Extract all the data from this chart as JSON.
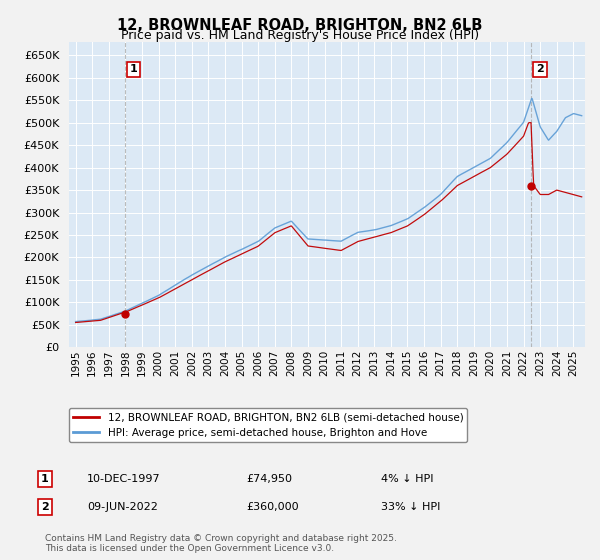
{
  "title1": "12, BROWNLEAF ROAD, BRIGHTON, BN2 6LB",
  "title2": "Price paid vs. HM Land Registry's House Price Index (HPI)",
  "legend_label1": "12, BROWNLEAF ROAD, BRIGHTON, BN2 6LB (semi-detached house)",
  "legend_label2": "HPI: Average price, semi-detached house, Brighton and Hove",
  "annotation1_label": "1",
  "annotation1_date": "10-DEC-1997",
  "annotation1_price": "£74,950",
  "annotation1_hpi": "4% ↓ HPI",
  "annotation2_label": "2",
  "annotation2_date": "09-JUN-2022",
  "annotation2_price": "£360,000",
  "annotation2_hpi": "33% ↓ HPI",
  "footnote": "Contains HM Land Registry data © Crown copyright and database right 2025.\nThis data is licensed under the Open Government Licence v3.0.",
  "hpi_color": "#5b9bd5",
  "price_color": "#c00000",
  "dashed_color": "#aaaaaa",
  "bg_color": "#f2f2f2",
  "plot_bg": "#dce9f5",
  "ylim_min": 0,
  "ylim_max": 680000,
  "sale1_year": 1997.95,
  "sale1_price": 74950,
  "sale2_year": 2022.45,
  "sale2_price": 360000
}
